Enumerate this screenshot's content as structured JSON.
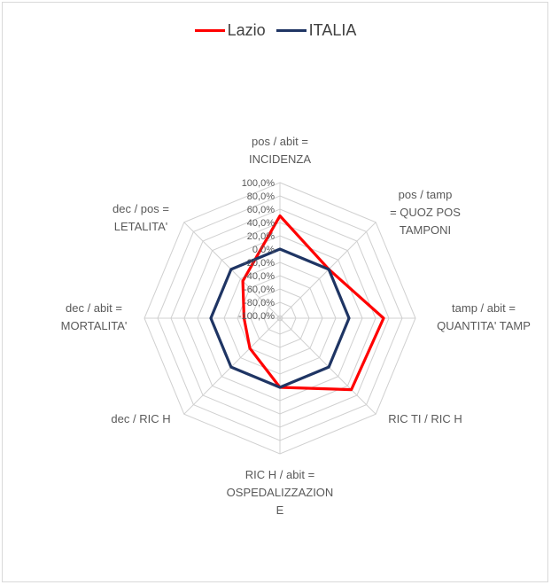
{
  "chart_data": {
    "type": "radar",
    "title": "",
    "categories": [
      [
        "pos / abit =",
        "INCIDENZA"
      ],
      [
        "pos / tamp",
        "= QUOZ POS",
        "TAMPONI"
      ],
      [
        "tamp / abit =",
        "QUANTITA' TAMP"
      ],
      [
        "RIC TI / RIC H"
      ],
      [
        "RIC H / abit =",
        "OSPEDALIZZAZION",
        "E"
      ],
      [
        "dec  / RIC H"
      ],
      [
        "dec / abit =",
        "MORTALITA'"
      ],
      [
        "dec / pos =",
        "LETALITA'"
      ]
    ],
    "ticks": [
      "-100,0%",
      "-80,0%",
      "-60,0%",
      "-40,0%",
      "-20,0%",
      "0,0%",
      "20,0%",
      "40,0%",
      "60,0%",
      "80,0%",
      "100,0%"
    ],
    "rlim": [
      -100,
      100
    ],
    "series": [
      {
        "name": "Lazio",
        "color": "#ff0000",
        "values": [
          50,
          0,
          52,
          48,
          0,
          -40,
          -50,
          -25
        ]
      },
      {
        "name": "ITALIA",
        "color": "#1f3564",
        "values": [
          0,
          0,
          0,
          0,
          0,
          0,
          0,
          0
        ]
      }
    ],
    "legend_position": "top",
    "grid": true
  }
}
